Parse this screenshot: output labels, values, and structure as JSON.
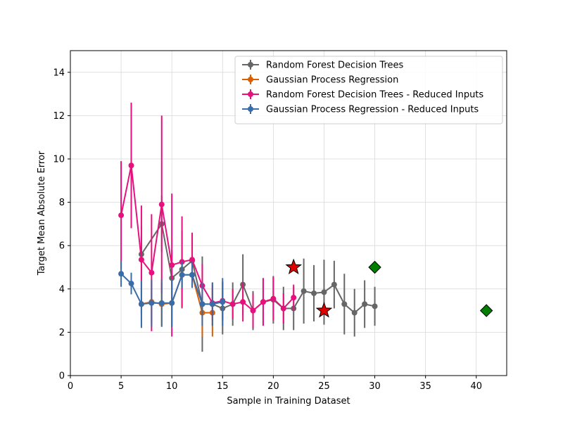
{
  "chart_data": {
    "type": "line",
    "xlabel": "Sample in Training Dataset",
    "ylabel": "Target Mean Absolute Error",
    "xlim": [
      0,
      43
    ],
    "ylim": [
      0,
      15
    ],
    "xticks": [
      0,
      5,
      10,
      15,
      20,
      25,
      30,
      35,
      40
    ],
    "yticks": [
      0,
      2,
      4,
      6,
      8,
      10,
      12,
      14
    ],
    "grid": true,
    "legend_position": "top-right",
    "series": [
      {
        "name": "Random Forest Decision Trees",
        "color": "#666666",
        "x": [
          7,
          9,
          10,
          11,
          12,
          13,
          14,
          15,
          16,
          17,
          18,
          19,
          20,
          21,
          22,
          23,
          24,
          25,
          26,
          27,
          28,
          29,
          30
        ],
        "y": [
          5.6,
          7.0,
          4.5,
          4.9,
          5.3,
          3.3,
          3.3,
          3.1,
          3.3,
          4.2,
          3.0,
          3.4,
          3.5,
          3.1,
          3.1,
          3.9,
          3.8,
          3.85,
          4.2,
          3.3,
          2.9,
          3.3,
          3.2
        ],
        "yerr": [
          1.3,
          1.3,
          1.3,
          1.8,
          1.2,
          2.2,
          1.0,
          1.2,
          1.0,
          1.4,
          0.9,
          1.1,
          1.1,
          1.0,
          1.0,
          1.5,
          1.3,
          1.5,
          1.1,
          1.4,
          1.1,
          1.1,
          0.9
        ]
      },
      {
        "name": "Gaussian Process Regression",
        "color": "#d95f02",
        "x": [
          7,
          8,
          9,
          10,
          11,
          12,
          13,
          14
        ],
        "y": [
          3.3,
          3.4,
          3.3,
          3.35,
          4.65,
          4.65,
          2.9,
          2.9
        ],
        "yerr": [
          1.0,
          1.0,
          1.0,
          1.1,
          0.6,
          0.6,
          1.1,
          1.1
        ]
      },
      {
        "name": "Random Forest Decision Trees - Reduced Inputs",
        "color": "#e7117d",
        "x": [
          5,
          6,
          7,
          8,
          9,
          10,
          11,
          12,
          13,
          14,
          15,
          16,
          17,
          18,
          19,
          20,
          21,
          22
        ],
        "y": [
          7.4,
          9.7,
          5.35,
          4.75,
          7.9,
          5.1,
          5.25,
          5.35,
          4.15,
          3.35,
          3.45,
          3.3,
          3.4,
          3.0,
          3.4,
          3.55,
          3.1,
          3.6
        ],
        "yerr": [
          2.5,
          2.9,
          2.5,
          2.7,
          4.1,
          3.3,
          2.1,
          1.25,
          1.0,
          0.8,
          0.9,
          0.7,
          0.9,
          0.8,
          1.1,
          1.0,
          0.7,
          0.6
        ]
      },
      {
        "name": "Gaussian Process Regression - Reduced Inputs",
        "color": "#3a6da8",
        "x": [
          5,
          6,
          7,
          8,
          9,
          10,
          11,
          12,
          13,
          14,
          15
        ],
        "y": [
          4.7,
          4.25,
          3.3,
          3.35,
          3.35,
          3.35,
          4.65,
          4.65,
          3.3,
          3.3,
          3.4
        ],
        "yerr": [
          0.6,
          0.5,
          1.1,
          1.1,
          1.1,
          1.1,
          0.6,
          0.6,
          1.0,
          1.0,
          1.1
        ]
      }
    ],
    "markers": [
      {
        "shape": "star",
        "color": "#e00000",
        "x": 22,
        "y": 5.0
      },
      {
        "shape": "star",
        "color": "#e00000",
        "x": 25,
        "y": 3.0
      },
      {
        "shape": "diamond",
        "color": "#008000",
        "x": 30,
        "y": 5.0
      },
      {
        "shape": "diamond",
        "color": "#008000",
        "x": 41,
        "y": 3.0
      }
    ]
  }
}
